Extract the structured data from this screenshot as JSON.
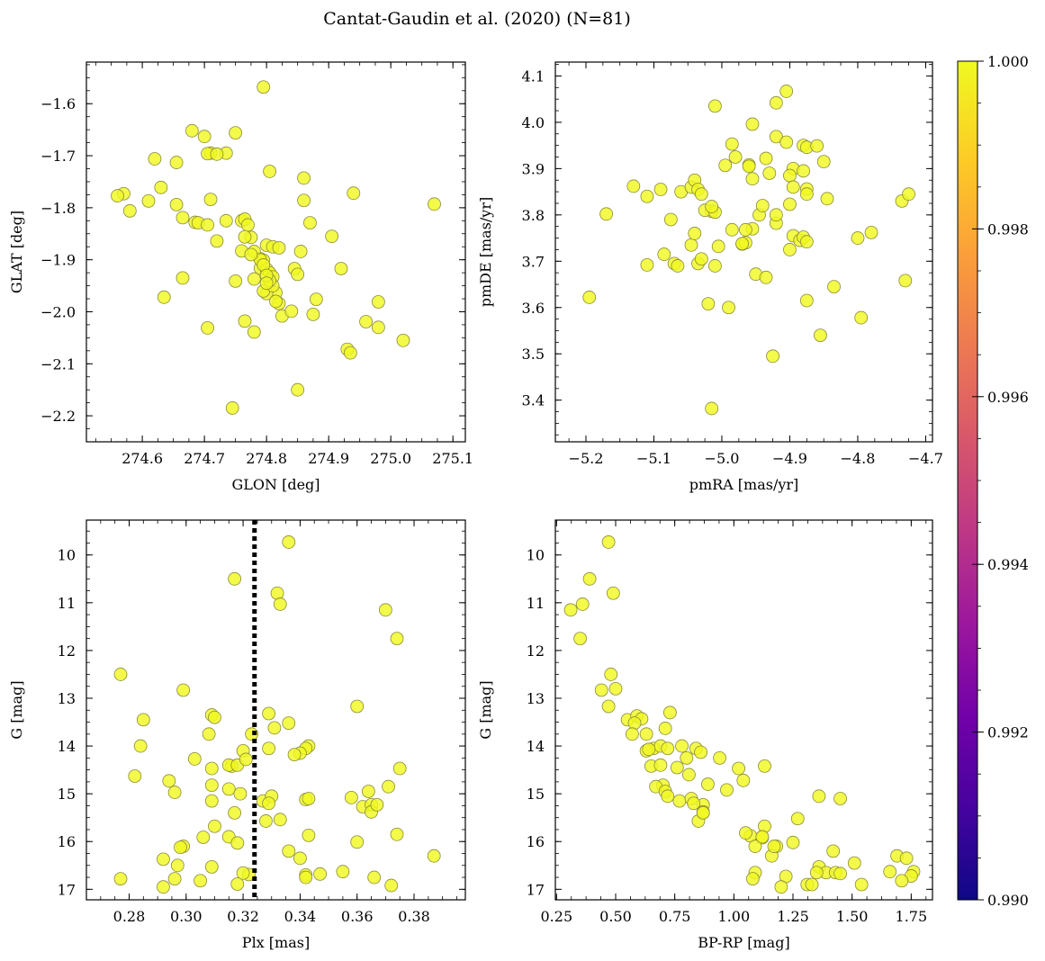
{
  "figure": {
    "title": "Cantat-Gaudin et al. (2020) (N=81)"
  },
  "colors": {
    "point_fill": "#f0f921",
    "point_edge": "#8a8a3a",
    "vline": "#000000",
    "colormap": [
      "#0d0887",
      "#46039f",
      "#7201a8",
      "#9c179e",
      "#bd3786",
      "#d8576b",
      "#ed7953",
      "#fb9f3a",
      "#fdca26",
      "#f0f921"
    ]
  },
  "colorbar": {
    "range": [
      0.99,
      1.0
    ],
    "ticks": [
      "0.990",
      "0.992",
      "0.994",
      "0.996",
      "0.998",
      "1.000"
    ]
  },
  "chart_data": [
    {
      "id": "glon-glat",
      "type": "scatter",
      "xlabel": "GLON [deg]",
      "ylabel": "GLAT [deg]",
      "xlim": [
        274.51,
        275.12
      ],
      "ylim": [
        -2.25,
        -1.52
      ],
      "y_inverted": false,
      "xticks": [
        274.6,
        274.7,
        274.8,
        274.9,
        275.0,
        275.1
      ],
      "xtick_labels": [
        "274.6",
        "274.7",
        "274.8",
        "274.9",
        "275.0",
        "275.1"
      ],
      "yticks": [
        -2.2,
        -2.1,
        -2.0,
        -1.9,
        -1.8,
        -1.7,
        -1.6
      ],
      "ytick_labels": [
        "−2.2",
        "−2.1",
        "−2.0",
        "−1.9",
        "−1.8",
        "−1.7",
        "−1.6"
      ],
      "x": [
        274.795,
        274.68,
        274.7,
        274.71,
        274.75,
        274.62,
        274.655,
        274.735,
        274.705,
        274.72,
        274.63,
        274.805,
        274.86,
        274.61,
        274.57,
        274.56,
        274.58,
        274.655,
        274.665,
        274.685,
        274.69,
        274.71,
        274.705,
        274.735,
        274.76,
        274.765,
        274.77,
        274.775,
        274.72,
        274.765,
        274.76,
        274.79,
        274.8,
        274.81,
        274.82,
        274.78,
        274.795,
        274.79,
        274.8,
        274.805,
        274.81,
        274.815,
        274.845,
        274.85,
        274.855,
        274.86,
        274.87,
        274.905,
        274.94,
        274.92,
        274.75,
        274.78,
        274.8,
        274.82,
        274.825,
        274.84,
        274.875,
        274.88,
        274.665,
        274.635,
        274.765,
        274.78,
        274.705,
        274.98,
        274.96,
        274.98,
        274.93,
        274.935,
        275.02,
        275.07,
        274.85,
        274.745,
        274.79,
        274.795,
        274.81,
        274.805,
        274.815,
        274.795,
        274.8,
        274.8,
        274.775
      ],
      "y": [
        -1.568,
        -1.652,
        -1.663,
        -1.695,
        -1.656,
        -1.706,
        -1.713,
        -1.695,
        -1.696,
        -1.697,
        -1.761,
        -1.73,
        -1.743,
        -1.787,
        -1.773,
        -1.777,
        -1.806,
        -1.794,
        -1.819,
        -1.828,
        -1.829,
        -1.784,
        -1.833,
        -1.825,
        -1.825,
        -1.822,
        -1.833,
        -1.857,
        -1.864,
        -1.856,
        -1.883,
        -1.898,
        -1.872,
        -1.875,
        -1.877,
        -1.884,
        -1.901,
        -1.916,
        -1.918,
        -1.925,
        -1.933,
        -1.963,
        -1.917,
        -1.928,
        -1.884,
        -1.786,
        -1.829,
        -1.855,
        -1.772,
        -1.917,
        -1.941,
        -1.937,
        -1.965,
        -1.984,
        -2.008,
        -1.999,
        -2.005,
        -1.976,
        -1.935,
        -1.972,
        -2.018,
        -2.039,
        -2.031,
        -1.981,
        -2.019,
        -2.03,
        -2.072,
        -2.079,
        -2.055,
        -1.793,
        -2.15,
        -2.185,
        -1.9,
        -1.96,
        -1.95,
        -1.94,
        -1.98,
        -1.91,
        -1.93,
        -1.945,
        -1.89
      ]
    },
    {
      "id": "pmra-pmde",
      "type": "scatter",
      "xlabel": "pmRA [mas/yr]",
      "ylabel": "pmDE [mas/yr]",
      "xlim": [
        -5.245,
        -4.69
      ],
      "ylim": [
        3.31,
        4.13
      ],
      "y_inverted": false,
      "xticks": [
        -5.2,
        -5.1,
        -5.0,
        -4.9,
        -4.8,
        -4.7
      ],
      "xtick_labels": [
        "−5.2",
        "−5.1",
        "−5.0",
        "−4.9",
        "−4.8",
        "−4.7"
      ],
      "yticks": [
        3.4,
        3.5,
        3.6,
        3.7,
        3.8,
        3.9,
        4.0,
        4.1
      ],
      "ytick_labels": [
        "3.4",
        "3.5",
        "3.6",
        "3.7",
        "3.8",
        "3.9",
        "4.0",
        "4.1"
      ],
      "x": [
        -4.905,
        -5.01,
        -4.92,
        -4.955,
        -4.92,
        -4.905,
        -4.88,
        -4.875,
        -4.86,
        -4.985,
        -4.98,
        -4.935,
        -4.96,
        -4.995,
        -4.93,
        -4.895,
        -4.88,
        -4.85,
        -4.875,
        -4.9,
        -4.845,
        -4.875,
        -4.895,
        -5.13,
        -5.17,
        -5.11,
        -5.09,
        -5.075,
        -5.06,
        -5.045,
        -5.04,
        -5.035,
        -5.03,
        -5.015,
        -5.025,
        -5.01,
        -4.985,
        -4.97,
        -4.965,
        -4.955,
        -4.945,
        -4.9,
        -4.895,
        -4.885,
        -4.88,
        -4.875,
        -4.92,
        -5.085,
        -5.045,
        -5.04,
        -5.035,
        -5.03,
        -5.01,
        -5.005,
        -4.97,
        -4.965,
        -4.95,
        -4.935,
        -4.9,
        -5.07,
        -5.065,
        -5.11,
        -4.875,
        -4.835,
        -4.8,
        -4.78,
        -4.735,
        -4.725,
        -4.73,
        -4.855,
        -4.795,
        -4.99,
        -5.02,
        -5.015,
        -5.195,
        -4.925,
        -5.015,
        -4.96,
        -4.955,
        -4.94,
        -4.92
      ],
      "y": [
        4.067,
        4.035,
        4.042,
        3.996,
        3.969,
        3.957,
        3.95,
        3.946,
        3.949,
        3.953,
        3.925,
        3.922,
        3.908,
        3.907,
        3.89,
        3.9,
        3.895,
        3.915,
        3.856,
        3.885,
        3.835,
        3.845,
        3.86,
        3.862,
        3.802,
        3.84,
        3.855,
        3.79,
        3.85,
        3.86,
        3.875,
        3.855,
        3.845,
        3.808,
        3.81,
        3.806,
        3.768,
        3.737,
        3.74,
        3.77,
        3.8,
        3.823,
        3.755,
        3.745,
        3.752,
        3.742,
        3.782,
        3.715,
        3.735,
        3.76,
        3.695,
        3.705,
        3.69,
        3.732,
        3.738,
        3.768,
        3.672,
        3.665,
        3.725,
        3.695,
        3.69,
        3.692,
        3.615,
        3.645,
        3.75,
        3.762,
        3.83,
        3.845,
        3.658,
        3.54,
        3.578,
        3.6,
        3.608,
        3.382,
        3.622,
        3.495,
        3.818,
        3.905,
        3.878,
        3.82,
        3.8
      ]
    },
    {
      "id": "plx-g",
      "type": "scatter",
      "xlabel": "Plx [mas]",
      "ylabel": "G [mag]",
      "xlim": [
        0.265,
        0.398
      ],
      "ylim": [
        17.22,
        9.27
      ],
      "y_inverted": true,
      "vline_x": 0.324,
      "xticks": [
        0.28,
        0.3,
        0.32,
        0.34,
        0.36,
        0.38
      ],
      "xtick_labels": [
        "0.28",
        "0.30",
        "0.32",
        "0.34",
        "0.36",
        "0.38"
      ],
      "yticks": [
        10,
        11,
        12,
        13,
        14,
        15,
        16,
        17
      ],
      "ytick_labels": [
        "10",
        "11",
        "12",
        "13",
        "14",
        "15",
        "16",
        "17"
      ],
      "x": [
        0.336,
        0.317,
        0.332,
        0.333,
        0.37,
        0.374,
        0.277,
        0.299,
        0.285,
        0.309,
        0.308,
        0.31,
        0.329,
        0.336,
        0.331,
        0.323,
        0.329,
        0.343,
        0.342,
        0.34,
        0.338,
        0.36,
        0.282,
        0.284,
        0.303,
        0.309,
        0.32,
        0.316,
        0.315,
        0.318,
        0.321,
        0.296,
        0.294,
        0.309,
        0.315,
        0.319,
        0.327,
        0.33,
        0.342,
        0.343,
        0.358,
        0.362,
        0.364,
        0.365,
        0.371,
        0.375,
        0.309,
        0.317,
        0.329,
        0.328,
        0.333,
        0.343,
        0.365,
        0.367,
        0.374,
        0.31,
        0.306,
        0.299,
        0.298,
        0.315,
        0.318,
        0.336,
        0.34,
        0.36,
        0.387,
        0.292,
        0.297,
        0.296,
        0.309,
        0.322,
        0.32,
        0.318,
        0.347,
        0.342,
        0.342,
        0.355,
        0.366,
        0.277,
        0.292,
        0.305,
        0.372
      ],
      "y": [
        9.73,
        10.5,
        10.8,
        11.03,
        11.15,
        11.75,
        12.5,
        12.83,
        13.45,
        13.35,
        13.75,
        13.4,
        13.32,
        13.52,
        13.62,
        13.75,
        14.05,
        14.0,
        14.05,
        14.15,
        14.18,
        13.17,
        14.63,
        14.0,
        14.27,
        14.47,
        14.1,
        14.42,
        14.4,
        14.4,
        14.28,
        14.97,
        14.73,
        14.82,
        14.9,
        15.0,
        15.15,
        15.05,
        15.12,
        15.1,
        15.08,
        15.27,
        14.95,
        15.23,
        14.85,
        14.47,
        15.15,
        15.4,
        15.2,
        15.57,
        15.54,
        15.87,
        15.38,
        15.23,
        15.85,
        15.68,
        15.91,
        16.1,
        16.12,
        15.9,
        16.03,
        16.2,
        16.35,
        16.01,
        16.3,
        16.37,
        16.5,
        16.78,
        16.53,
        16.69,
        16.66,
        16.89,
        16.68,
        16.7,
        16.75,
        16.63,
        16.75,
        16.78,
        16.95,
        16.82,
        16.92
      ]
    },
    {
      "id": "bprp-g",
      "type": "scatter",
      "xlabel": "BP-RP [mag]",
      "ylabel": "G [mag]",
      "xlim": [
        0.245,
        1.84
      ],
      "ylim": [
        17.22,
        9.27
      ],
      "y_inverted": true,
      "xticks": [
        0.25,
        0.5,
        0.75,
        1.0,
        1.25,
        1.5,
        1.75
      ],
      "xtick_labels": [
        "0.25",
        "0.50",
        "0.75",
        "1.00",
        "1.25",
        "1.50",
        "1.75"
      ],
      "yticks": [
        10,
        11,
        12,
        13,
        14,
        15,
        16,
        17
      ],
      "ytick_labels": [
        "10",
        "11",
        "12",
        "13",
        "14",
        "15",
        "16",
        "17"
      ],
      "x": [
        0.47,
        0.39,
        0.49,
        0.36,
        0.31,
        0.35,
        0.48,
        0.44,
        0.5,
        0.47,
        0.55,
        0.59,
        0.61,
        0.58,
        0.73,
        0.71,
        0.57,
        0.63,
        0.66,
        0.69,
        0.72,
        0.78,
        0.84,
        0.86,
        0.94,
        0.8,
        0.63,
        0.65,
        0.69,
        0.76,
        0.7,
        0.67,
        0.71,
        0.72,
        0.77,
        0.82,
        0.89,
        0.97,
        1.02,
        1.04,
        1.13,
        0.81,
        0.87,
        0.83,
        0.85,
        0.87,
        1.07,
        1.13,
        1.12,
        1.18,
        1.27,
        1.05,
        1.09,
        1.12,
        1.16,
        1.17,
        1.25,
        1.36,
        1.42,
        1.51,
        1.36,
        1.39,
        1.45,
        1.43,
        1.35,
        1.31,
        1.45,
        1.66,
        1.69,
        1.73,
        1.76,
        1.75,
        1.71,
        1.54,
        1.33,
        1.22,
        1.2,
        1.09,
        1.08,
        0.87,
        0.64
      ],
      "y": [
        9.73,
        10.5,
        10.8,
        11.03,
        11.15,
        11.75,
        12.5,
        12.83,
        12.8,
        13.17,
        13.45,
        13.37,
        13.43,
        13.52,
        13.3,
        13.63,
        13.75,
        13.75,
        14.05,
        14.0,
        14.05,
        14.0,
        14.05,
        14.13,
        14.25,
        14.25,
        14.1,
        14.42,
        14.4,
        14.45,
        14.82,
        14.85,
        14.95,
        15.05,
        15.15,
        15.1,
        14.8,
        14.92,
        14.47,
        14.72,
        14.42,
        14.6,
        15.23,
        15.2,
        15.57,
        15.38,
        15.88,
        15.68,
        15.92,
        16.1,
        15.52,
        15.82,
        16.1,
        15.9,
        16.3,
        16.1,
        16.02,
        15.05,
        16.2,
        16.45,
        16.53,
        16.65,
        15.1,
        16.65,
        16.65,
        16.9,
        16.67,
        16.63,
        16.3,
        16.35,
        16.63,
        16.72,
        16.82,
        16.9,
        16.9,
        16.73,
        16.95,
        16.65,
        16.78,
        15.4,
        14.07
      ]
    }
  ]
}
